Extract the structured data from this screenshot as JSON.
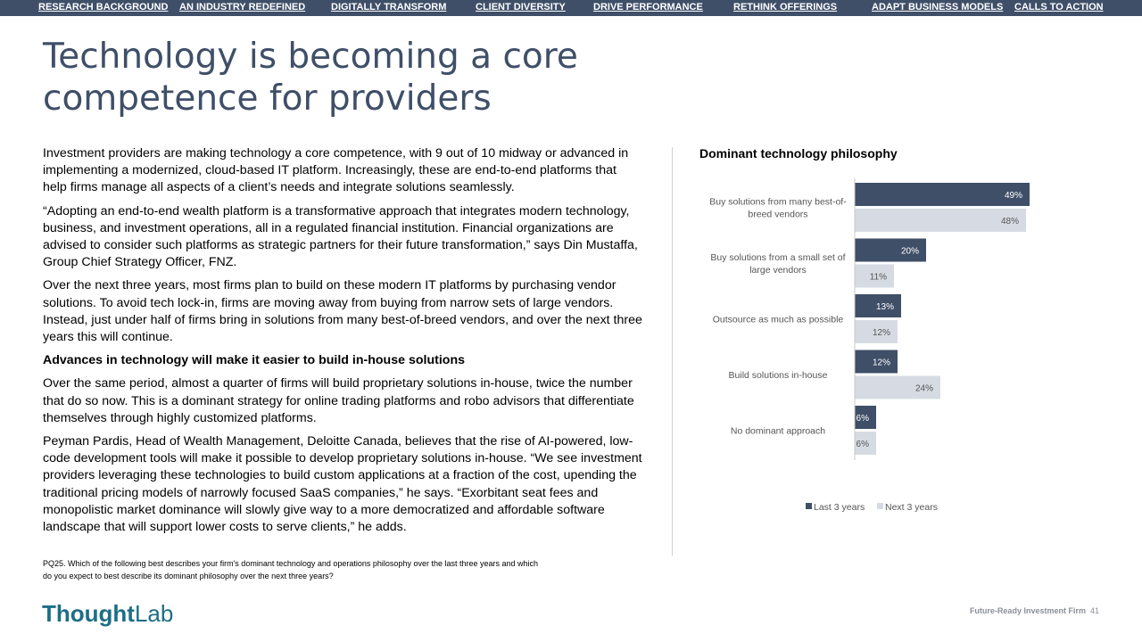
{
  "nav": {
    "items": [
      "RESEARCH BACKGROUND",
      "AN INDUSTRY REDEFINED",
      "DIGITALLY TRANSFORM",
      "CLIENT DIVERSITY",
      "DRIVE PERFORMANCE",
      "RETHINK OFFERINGS",
      "ADAPT BUSINESS MODELS",
      "CALLS TO ACTION"
    ]
  },
  "page": {
    "title": "Technology is becoming a core competence for providers"
  },
  "body": {
    "p1": "Investment providers are making technology a core competence, with 9 out of 10 midway or advanced in implementing a modernized, cloud-based IT platform. Increasingly, these are end-to-end platforms that help firms manage all aspects of a client’s needs and integrate solutions seamlessly.",
    "p2": "“Adopting an end-to-end wealth platform is a transformative approach that integrates modern technology, business, and investment operations, all in a regulated financial institution. Financial organizations are advised to consider such platforms as strategic partners for their future transformation,” says Din Mustaffa, Group Chief Strategy Officer, FNZ.",
    "p3": "Over the next three years, most firms plan to build on these modern IT platforms by purchasing vendor solutions. To avoid tech lock-in, firms are moving away from buying from narrow sets of large vendors. Instead, just under half of firms bring in solutions from many best-of-breed vendors, and over the next three years this will continue.",
    "subhead": "Advances in technology will make it easier to build in-house solutions",
    "p4": "Over the same period, almost a quarter of firms will build proprietary solutions in-house, twice the number that do so now. This is a dominant strategy for online trading platforms and robo advisors that differentiate themselves through highly customized platforms.",
    "p5": "Peyman Pardis, Head of Wealth Management, Deloitte Canada, believes that the rise of AI-powered, low-code development tools will make it possible to develop proprietary solutions in-house. “We see investment providers leveraging these technologies to build custom applications at a fraction of the cost, upending the traditional pricing models of narrowly focused SaaS companies,” he says. “Exorbitant seat fees and monopolistic market dominance will slowly give way to a more democratized and affordable software landscape that will support lower costs to serve clients,” he adds."
  },
  "footnote": "PQ25. Which of the following best describes your firm's dominant technology and operations philosophy over the last three years and which do you expect to best describe its dominant philosophy over the next three years?",
  "logo": {
    "part1": "Thought",
    "part2": "Lab"
  },
  "footer": {
    "name": "Future-Ready Investment Firm",
    "page": "41"
  },
  "colors": {
    "nav_bg": "#3f4f68",
    "series_last": "#3f4f68",
    "series_next": "#d6dbe3"
  },
  "chart_data": {
    "type": "bar",
    "orientation": "horizontal",
    "title": "Dominant technology philosophy",
    "categories": [
      [
        "Buy solutions from many best-of-",
        "breed vendors"
      ],
      [
        "Buy solutions from a small set of",
        "large vendors"
      ],
      [
        "Outsource as much as possible"
      ],
      [
        "Build solutions in-house"
      ],
      [
        "No dominant approach"
      ]
    ],
    "series": [
      {
        "name": "Last 3 years",
        "values": [
          49,
          20,
          13,
          12,
          6
        ]
      },
      {
        "name": "Next 3 years",
        "values": [
          48,
          11,
          12,
          24,
          6
        ]
      }
    ],
    "value_suffix": "%",
    "legend": "bottom"
  }
}
